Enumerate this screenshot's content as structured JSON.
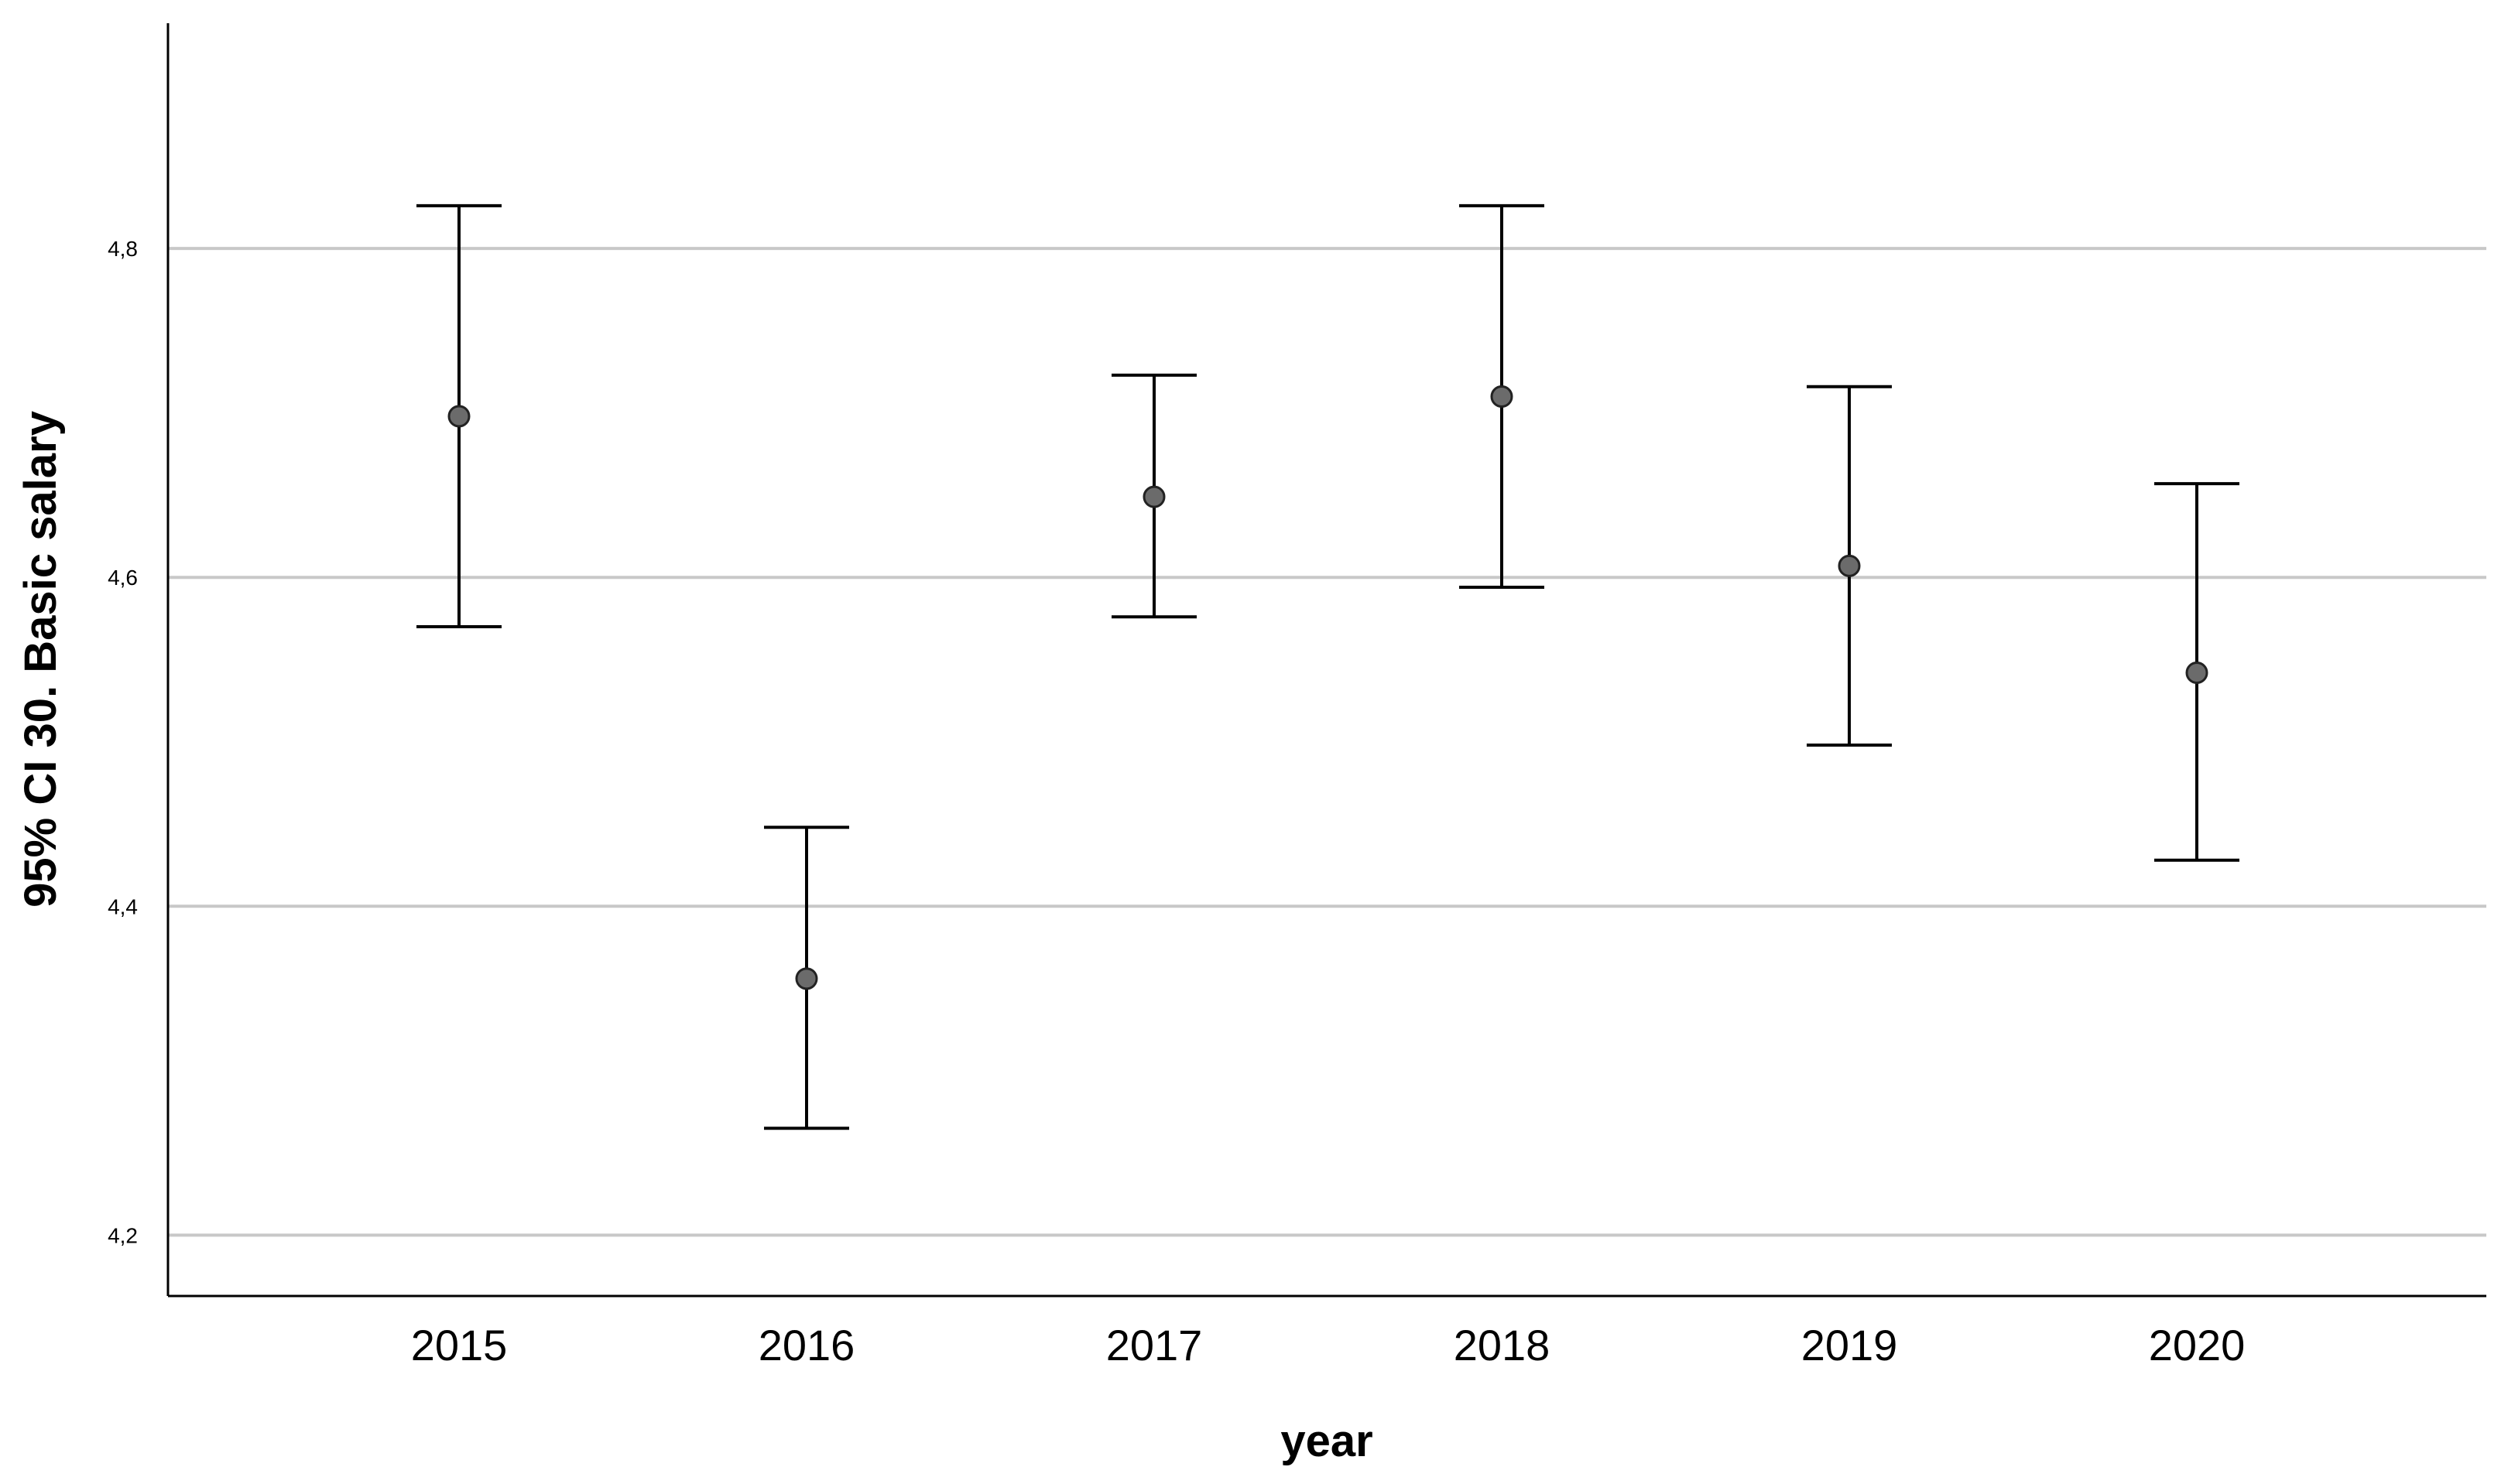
{
  "chart_data": {
    "type": "errorbar",
    "title": "",
    "xlabel": "year",
    "ylabel": "95% CI 30. Basic salary",
    "categories": [
      "2015",
      "2016",
      "2017",
      "2018",
      "2019",
      "2020"
    ],
    "means": [
      4.698,
      4.356,
      4.649,
      4.71,
      4.607,
      4.542
    ],
    "lower": [
      4.57,
      4.265,
      4.576,
      4.594,
      4.498,
      4.428
    ],
    "upper": [
      4.826,
      4.448,
      4.723,
      4.826,
      4.716,
      4.657
    ],
    "yticks": [
      4.2,
      4.4,
      4.6,
      4.8
    ],
    "ytick_labels": [
      "4,2",
      "4,4",
      "4,6",
      "4,8"
    ],
    "ylim": [
      4.163,
      4.937
    ],
    "grid": "horizontal",
    "legend": "none",
    "colors": {
      "marker_fill": "#6b6b6b",
      "line": "#000000",
      "grid": "#c8c8c8",
      "axis": "#000000"
    }
  }
}
